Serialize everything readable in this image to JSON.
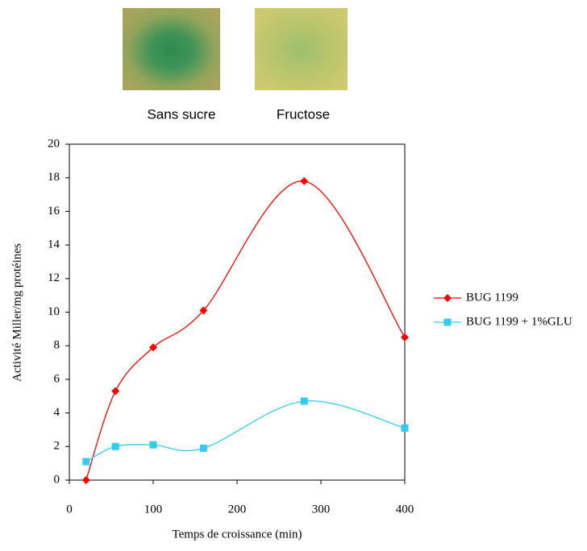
{
  "panels": [
    "Sans sucre",
    "Fructose"
  ],
  "chart_data": {
    "type": "line",
    "x_label": "Temps de croissance (min)",
    "y_label": "Activité Miller/mg protéines",
    "xlim": [
      0,
      400
    ],
    "xticks": [
      0,
      100,
      200,
      300,
      400
    ],
    "ylim": [
      0,
      20
    ],
    "yticks": [
      0,
      2,
      4,
      6,
      8,
      10,
      12,
      14,
      16,
      18,
      20
    ],
    "legend": "right",
    "series": [
      {
        "name": "BUG 1199",
        "color": "#ff0000",
        "marker": "diamond",
        "x": [
          20,
          55,
          100,
          160,
          280,
          400
        ],
        "values": [
          0,
          5.3,
          7.9,
          10.1,
          17.8,
          8.5
        ]
      },
      {
        "name": "BUG 1199 + 1%GLU",
        "color": "#33ccee",
        "marker": "square",
        "x": [
          20,
          55,
          100,
          160,
          280,
          400
        ],
        "values": [
          1.1,
          2.0,
          2.1,
          1.9,
          4.7,
          3.1
        ]
      }
    ]
  }
}
